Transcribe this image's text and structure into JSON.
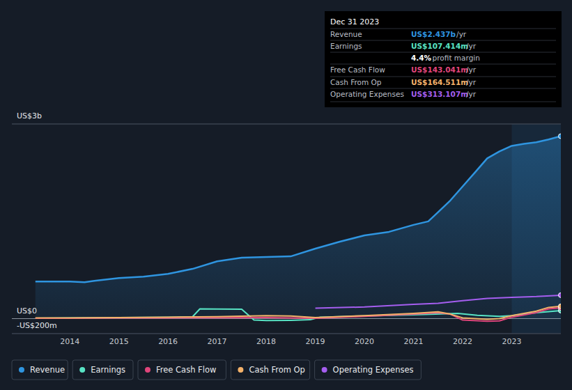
{
  "chart_data": {
    "type": "line",
    "xlim": [
      2012.82,
      2024.0
    ],
    "xticks": [
      2014,
      2015,
      2016,
      2017,
      2018,
      2019,
      2020,
      2021,
      2022,
      2023
    ],
    "ylim": [
      -200,
      2600
    ],
    "yticks": [
      {
        "value": -200,
        "label": "-US$200m"
      },
      {
        "value": 0,
        "label": "US$0"
      },
      {
        "value": 2600,
        "label": "US$3b"
      }
    ],
    "grid": true,
    "legend": "bottom",
    "series": [
      {
        "name": "Revenue",
        "color": "#2f95e0",
        "type": "area",
        "x": [
          2013.3,
          2014,
          2014.3,
          2014.5,
          2015,
          2015.5,
          2016,
          2016.5,
          2017,
          2017.5,
          2018,
          2018.5,
          2019,
          2019.5,
          2020,
          2020.5,
          2021,
          2021.3,
          2021.5,
          2021.75,
          2022,
          2022.25,
          2022.5,
          2022.75,
          2023,
          2023.25,
          2023.5,
          2023.75,
          2024
        ],
        "values": [
          495,
          495,
          486,
          505,
          542,
          561,
          598,
          664,
          766,
          813,
          822,
          832,
          935,
          1028,
          1112,
          1159,
          1252,
          1299,
          1421,
          1579,
          1766,
          1953,
          2140,
          2234,
          2308,
          2336,
          2355,
          2393,
          2437
        ]
      },
      {
        "name": "Earnings",
        "color": "#58e3c4",
        "type": "line",
        "x": [
          2013.3,
          2014,
          2015,
          2016,
          2016.5,
          2016.65,
          2017,
          2017.5,
          2017.75,
          2018,
          2018.5,
          2018.9,
          2019.1,
          2020,
          2021,
          2021.9,
          2022.3,
          2022.75,
          2023,
          2023.5,
          2024
        ],
        "values": [
          5,
          8,
          15,
          20,
          25,
          130,
          128,
          125,
          -20,
          -25,
          -22,
          -15,
          20,
          35,
          50,
          70,
          45,
          30,
          40,
          80,
          107
        ]
      },
      {
        "name": "Free Cash Flow",
        "color": "#e0457b",
        "type": "line",
        "x": [
          2013.3,
          2014,
          2015,
          2016,
          2017,
          2018,
          2019,
          2020,
          2021,
          2021.5,
          2021.75,
          2022,
          2022.5,
          2022.75,
          2023,
          2023.5,
          2023.75,
          2024
        ],
        "values": [
          5,
          5,
          8,
          10,
          12,
          15,
          5,
          30,
          60,
          80,
          60,
          -20,
          -35,
          -30,
          20,
          80,
          130,
          143
        ]
      },
      {
        "name": "Cash From Op",
        "color": "#f4b26a",
        "type": "line",
        "x": [
          2013.3,
          2014,
          2015,
          2016,
          2017,
          2018,
          2018.5,
          2019,
          2020,
          2021,
          2021.5,
          2021.75,
          2022,
          2022.5,
          2022.75,
          2023,
          2023.5,
          2023.75,
          2024
        ],
        "values": [
          10,
          8,
          15,
          20,
          25,
          40,
          35,
          15,
          40,
          70,
          90,
          60,
          10,
          -10,
          0,
          40,
          100,
          150,
          164.5
        ]
      },
      {
        "name": "Operating Expenses",
        "color": "#a55ef0",
        "type": "line",
        "x": [
          2019,
          2020,
          2021,
          2021.5,
          2022,
          2022.5,
          2023,
          2023.5,
          2024
        ],
        "values": [
          140,
          155,
          190,
          205,
          240,
          270,
          285,
          295,
          313
        ]
      }
    ],
    "tooltip": {
      "title": "Dec 31 2023",
      "rows": [
        {
          "label": "Revenue",
          "value": "US$2.437b",
          "unit": "/yr",
          "color": "#2f95e0"
        },
        {
          "label": "Earnings",
          "value": "US$107.414m",
          "unit": "/yr",
          "color": "#58e3c4"
        },
        {
          "value": "4.4%",
          "label": "profit margin",
          "color": "#ffffff"
        },
        {
          "label": "Free Cash Flow",
          "value": "US$143.041m",
          "unit": "/yr",
          "color": "#e0457b"
        },
        {
          "label": "Cash From Op",
          "value": "US$164.511m",
          "unit": "/yr",
          "color": "#f4b26a"
        },
        {
          "label": "Operating Expenses",
          "value": "US$313.107m",
          "unit": "/yr",
          "color": "#a55ef0"
        }
      ]
    }
  }
}
